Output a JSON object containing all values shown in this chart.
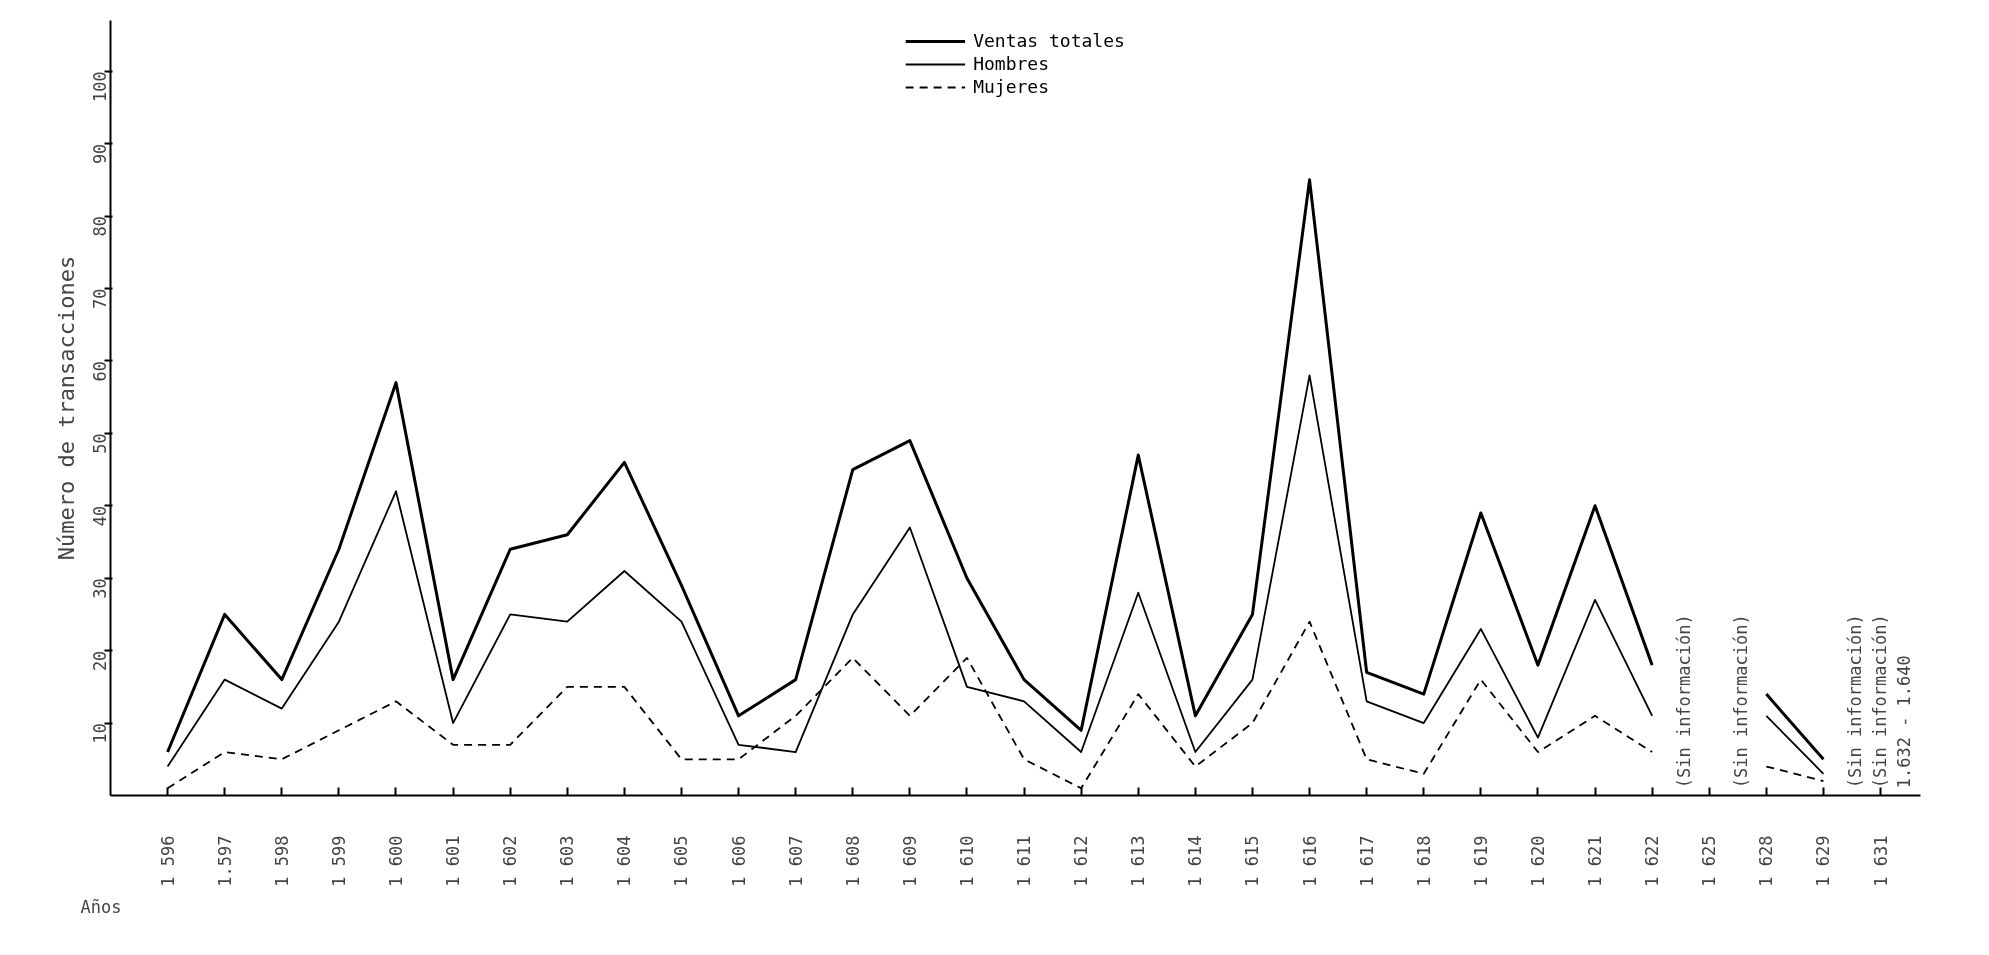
{
  "chart_data": {
    "type": "line",
    "xlabel": "Años",
    "ylabel": "Número de transacciones",
    "categories": [
      "1 596",
      "1.597",
      "1 598",
      "1 599",
      "1 600",
      "1 601",
      "1 602",
      "1 603",
      "1 604",
      "1 605",
      "1 606",
      "1 607",
      "1 608",
      "1 609",
      "1 610",
      "1 611",
      "1 612",
      "1 613",
      "1 614",
      "1 615",
      "1 616",
      "1 617",
      "1 618",
      "1 619",
      "1 620",
      "1 621",
      "1 622",
      "1 625",
      "1 628",
      "1 629",
      "1 631"
    ],
    "series": [
      {
        "name": "Ventas totales",
        "color": "#000000",
        "line_style": "solid",
        "values": [
          6,
          25,
          16,
          34,
          57,
          16,
          34,
          36,
          46,
          29,
          11,
          16,
          45,
          49,
          30,
          16,
          9,
          47,
          11,
          25,
          85,
          17,
          14,
          39,
          18,
          40,
          18,
          null,
          14,
          5,
          null
        ]
      },
      {
        "name": "Hombres",
        "color": "#000000",
        "line_style": "solid",
        "values": [
          4,
          16,
          12,
          24,
          42,
          10,
          25,
          24,
          31,
          24,
          7,
          6,
          25,
          37,
          15,
          13,
          6,
          28,
          6,
          16,
          58,
          13,
          10,
          23,
          8,
          27,
          11,
          null,
          11,
          3,
          null
        ]
      },
      {
        "name": "Mujeres",
        "color": "#000000",
        "line_style": "dashed",
        "values": [
          1,
          6,
          5,
          9,
          13,
          7,
          7,
          15,
          15,
          5,
          5,
          11,
          19,
          11,
          19,
          5,
          1,
          14,
          4,
          10,
          24,
          5,
          3,
          16,
          6,
          11,
          6,
          null,
          4,
          2,
          null
        ]
      }
    ],
    "annotations": [
      "(Sin información)",
      "(Sin información)",
      "(Sin información)",
      "(Sin información)\n1.632 - 1.640"
    ],
    "ylim": [
      0,
      107
    ],
    "yticks": [
      10,
      20,
      30,
      40,
      50,
      60,
      70,
      80,
      90,
      100
    ],
    "grid": false,
    "legend": "top",
    "marker": "none"
  }
}
